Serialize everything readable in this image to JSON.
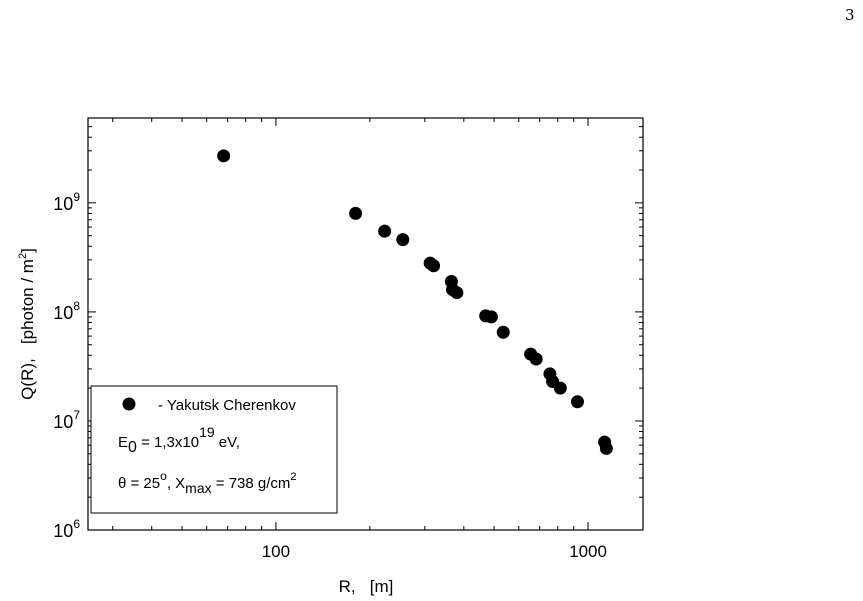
{
  "page": {
    "number": "3"
  },
  "chart_data": {
    "type": "scatter",
    "xlabel": "R,   [m]",
    "ylabel": "Q(R),   [photon / m",
    "ylabel_sup": "2",
    "ylabel_close": "]",
    "x_scale": "log",
    "y_scale": "log",
    "xlim": [
      25,
      1500
    ],
    "ylim": [
      1000000,
      6000000000
    ],
    "x_ticks": [
      {
        "value": 100,
        "label": "100"
      },
      {
        "value": 1000,
        "label": "1000"
      }
    ],
    "y_ticks": [
      {
        "value": 1000000,
        "base": "10",
        "exp": "6"
      },
      {
        "value": 10000000,
        "base": "10",
        "exp": "7"
      },
      {
        "value": 100000000,
        "base": "10",
        "exp": "8"
      },
      {
        "value": 1000000000,
        "base": "10",
        "exp": "9"
      }
    ],
    "grid": false,
    "legend_position": "bottom-left",
    "series": [
      {
        "name": "- Yakutsk Cherenkov",
        "marker": "filled-circle",
        "color": "#000000",
        "points": [
          [
            68,
            2700000000
          ],
          [
            180,
            800000000
          ],
          [
            223,
            550000000
          ],
          [
            255,
            460000000
          ],
          [
            312,
            280000000
          ],
          [
            320,
            265000000
          ],
          [
            365,
            190000000
          ],
          [
            368,
            160000000
          ],
          [
            380,
            150000000
          ],
          [
            470,
            92000000
          ],
          [
            490,
            90000000
          ],
          [
            535,
            65000000
          ],
          [
            655,
            41000000
          ],
          [
            682,
            37000000
          ],
          [
            755,
            27000000
          ],
          [
            770,
            23000000
          ],
          [
            815,
            20000000
          ],
          [
            925,
            15000000
          ],
          [
            1130,
            6400000
          ],
          [
            1145,
            5600000
          ]
        ]
      }
    ],
    "annotations": {
      "energy_prefix": "E",
      "energy_sub": "0",
      "energy_mid": " = 1,3x10",
      "energy_sup": "19",
      "energy_unit": " eV,",
      "geom_prefix": "θ = 25",
      "geom_deg": "o",
      "geom_mid": ", X",
      "geom_sub": "max",
      "geom_value": " = 738 g/cm",
      "geom_sup": "2"
    }
  }
}
